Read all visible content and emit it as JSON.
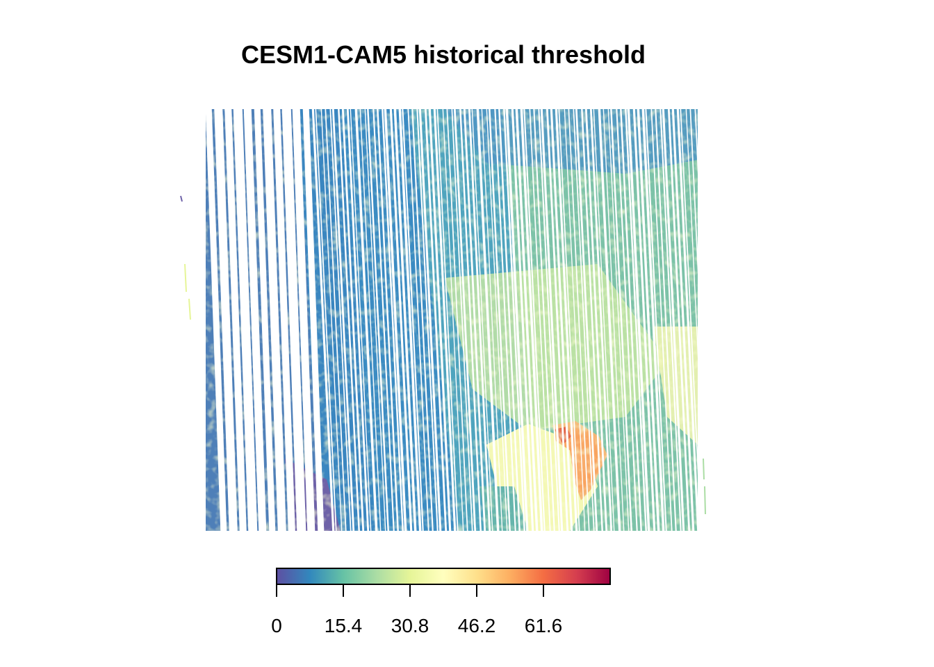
{
  "chart_data": {
    "type": "heatmap",
    "title": "CESM1-CAM5 historical threshold",
    "xlabel": "",
    "ylabel": "",
    "colorbar": {
      "min": 0,
      "max": 77,
      "ticks": [
        0,
        15.4,
        30.8,
        46.2,
        61.6
      ],
      "tick_labels": [
        "0",
        "15.4",
        "30.8",
        "46.2",
        "61.6"
      ],
      "palette": [
        "#5E4FA2",
        "#3288BD",
        "#66C2A5",
        "#ABDDA4",
        "#E6F598",
        "#FFFFBF",
        "#FEE08B",
        "#FDAE61",
        "#F46D43",
        "#D53E4F",
        "#9E0142"
      ],
      "position": "bottom"
    },
    "description_regions": [
      {
        "name": "western swath",
        "approx_value": 5
      },
      {
        "name": "central band",
        "approx_value": 15
      },
      {
        "name": "eastern field",
        "approx_value": 28
      },
      {
        "name": "southern fan",
        "approx_value": 38
      },
      {
        "name": "hotspot",
        "approx_value": 58
      }
    ]
  },
  "colors": {
    "background": "#FFFFFF",
    "stripe": "#FFFFFF",
    "frame": "#000000"
  }
}
